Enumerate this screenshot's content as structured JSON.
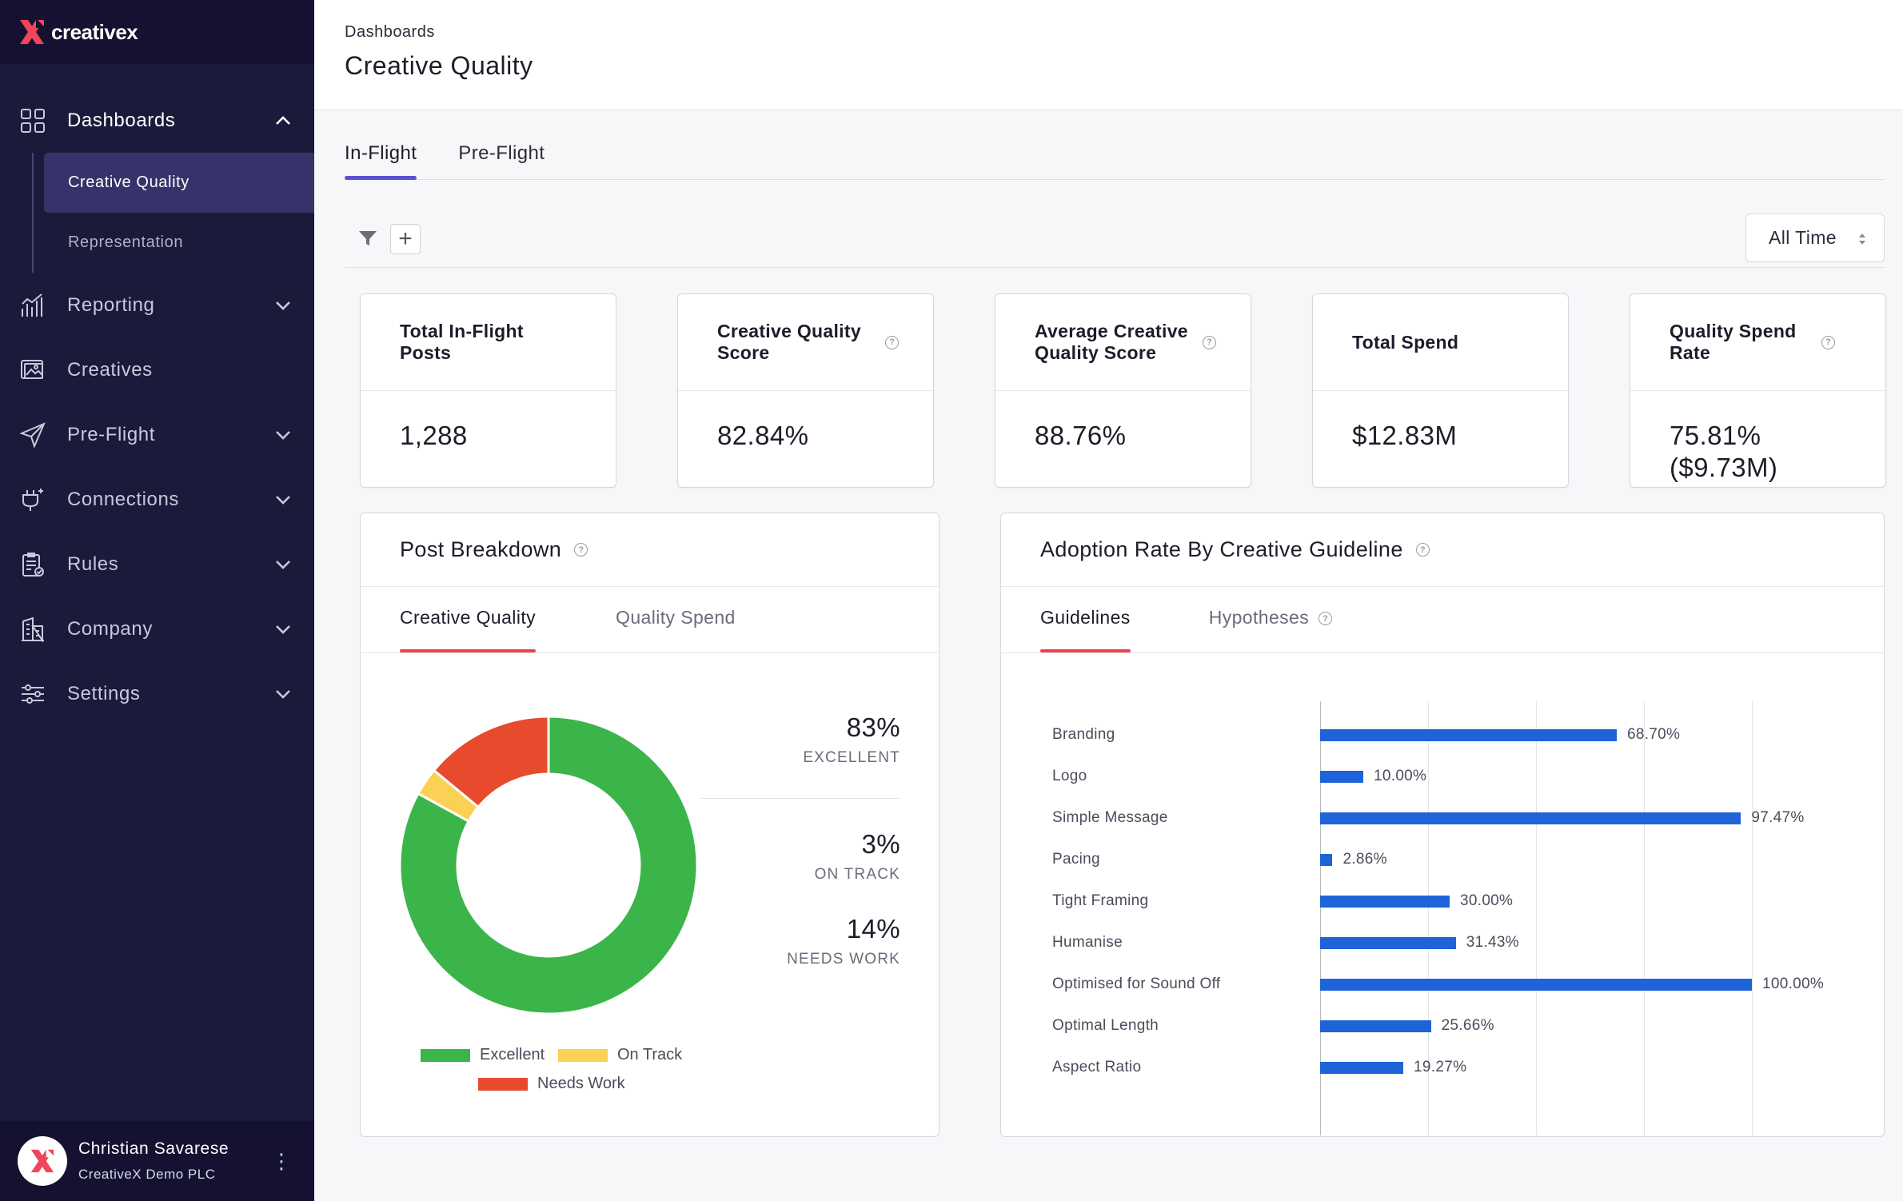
{
  "brand": {
    "name": "creativex"
  },
  "sidebar": {
    "items": [
      {
        "key": "dashboards",
        "label": "Dashboards",
        "expanded": true,
        "icon": "grid-icon"
      },
      {
        "key": "reporting",
        "label": "Reporting",
        "icon": "chart-icon"
      },
      {
        "key": "creatives",
        "label": "Creatives",
        "icon": "images-icon"
      },
      {
        "key": "preflight",
        "label": "Pre-Flight",
        "icon": "paper-plane-icon"
      },
      {
        "key": "connections",
        "label": "Connections",
        "icon": "plug-icon"
      },
      {
        "key": "rules",
        "label": "Rules",
        "icon": "clipboard-check-icon"
      },
      {
        "key": "company",
        "label": "Company",
        "icon": "building-icon"
      },
      {
        "key": "settings",
        "label": "Settings",
        "icon": "sliders-icon"
      }
    ],
    "dashboards_sub": [
      {
        "label": "Creative Quality",
        "active": true
      },
      {
        "label": "Representation",
        "active": false
      }
    ]
  },
  "user": {
    "name": "Christian Savarese",
    "org": "CreativeX Demo PLC"
  },
  "header": {
    "breadcrumb": "Dashboards",
    "title": "Creative Quality"
  },
  "main_tabs": [
    {
      "label": "In-Flight",
      "active": true
    },
    {
      "label": "Pre-Flight",
      "active": false
    }
  ],
  "filters": {
    "add_label": "+",
    "time_range": "All Time"
  },
  "kpis": [
    {
      "label": "Total In-Flight Posts",
      "value": "1,288",
      "help": false
    },
    {
      "label": "Creative Quality Score",
      "value": "82.84%",
      "help": true
    },
    {
      "label": "Average Creative Quality Score",
      "value": "88.76%",
      "help": true
    },
    {
      "label": "Total Spend",
      "value": "$12.83M",
      "help": false
    },
    {
      "label": "Quality Spend Rate",
      "value": "75.81% ($9.73M)",
      "help": true
    }
  ],
  "post_breakdown": {
    "title": "Post Breakdown",
    "tabs": [
      {
        "label": "Creative Quality",
        "active": true
      },
      {
        "label": "Quality Spend",
        "active": false
      }
    ],
    "stats": [
      {
        "value": "83%",
        "label": "EXCELLENT"
      },
      {
        "value": "3%",
        "label": "ON TRACK"
      },
      {
        "value": "14%",
        "label": "NEEDS WORK"
      }
    ],
    "legend": [
      {
        "label": "Excellent",
        "color": "#3bb54a"
      },
      {
        "label": "On Track",
        "color": "#fbd155"
      },
      {
        "label": "Needs Work",
        "color": "#e84a2e"
      }
    ]
  },
  "adoption": {
    "title": "Adoption Rate By Creative Guideline",
    "tabs": [
      {
        "label": "Guidelines",
        "active": true
      },
      {
        "label": "Hypotheses",
        "active": false
      }
    ]
  },
  "chart_data": [
    {
      "type": "pie",
      "title": "Post Breakdown",
      "categories": [
        "Excellent",
        "On Track",
        "Needs Work"
      ],
      "values": [
        83,
        3,
        14
      ],
      "colors": [
        "#3bb54a",
        "#fbd155",
        "#e84a2e"
      ]
    },
    {
      "type": "bar",
      "title": "Adoption Rate By Creative Guideline",
      "orientation": "horizontal",
      "categories": [
        "Branding",
        "Logo",
        "Simple Message",
        "Pacing",
        "Tight Framing",
        "Humanise",
        "Optimised for Sound Off",
        "Optimal Length",
        "Aspect Ratio"
      ],
      "values": [
        68.7,
        10.0,
        97.47,
        2.86,
        30.0,
        31.43,
        100.0,
        25.66,
        19.27
      ],
      "labels": [
        "68.70%",
        "10.00%",
        "97.47%",
        "2.86%",
        "30.00%",
        "31.43%",
        "100.00%",
        "25.66%",
        "19.27%"
      ],
      "xlim": [
        0,
        100
      ],
      "color": "#1f63d8"
    }
  ]
}
